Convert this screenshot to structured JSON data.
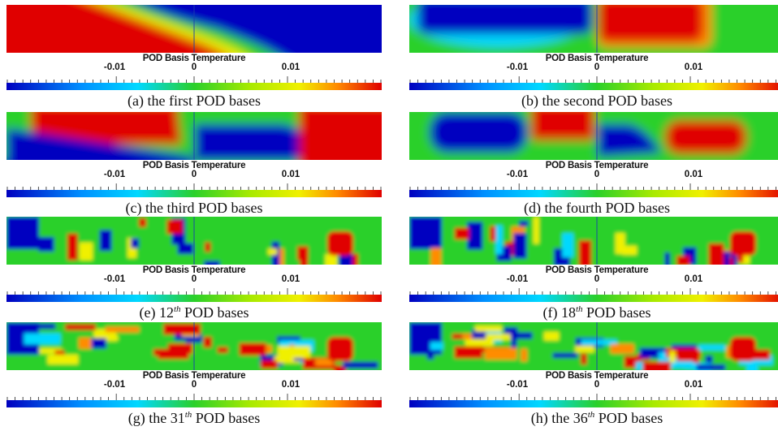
{
  "colorbar": {
    "title": "POD Basis Temperature",
    "tick_labels": [
      "-0.01",
      "0",
      "0.01"
    ]
  },
  "colors": {
    "blue": "#0000c0",
    "cyan": "#00d8ff",
    "green": "#2ad02a",
    "yellow": "#f0f000",
    "orange": "#ff8c00",
    "red": "#e00000"
  },
  "panels": [
    {
      "letter": "(a)",
      "prefix": "the first",
      "sup": "",
      "suffix": "POD bases"
    },
    {
      "letter": "(b)",
      "prefix": "the second",
      "sup": "",
      "suffix": "POD bases"
    },
    {
      "letter": "(c)",
      "prefix": "the third",
      "sup": "",
      "suffix": "POD bases"
    },
    {
      "letter": "(d)",
      "prefix": "the fourth",
      "sup": "",
      "suffix": "POD bases"
    },
    {
      "letter": "(e)",
      "prefix": "12",
      "sup": "th",
      "suffix": "POD bases"
    },
    {
      "letter": "(f)",
      "prefix": "18",
      "sup": "th",
      "suffix": "POD bases"
    },
    {
      "letter": "(g)",
      "prefix": "the 31",
      "sup": "th",
      "suffix": "POD bases"
    },
    {
      "letter": "(h)",
      "prefix": "the 36",
      "sup": "th",
      "suffix": "POD bases"
    }
  ]
}
